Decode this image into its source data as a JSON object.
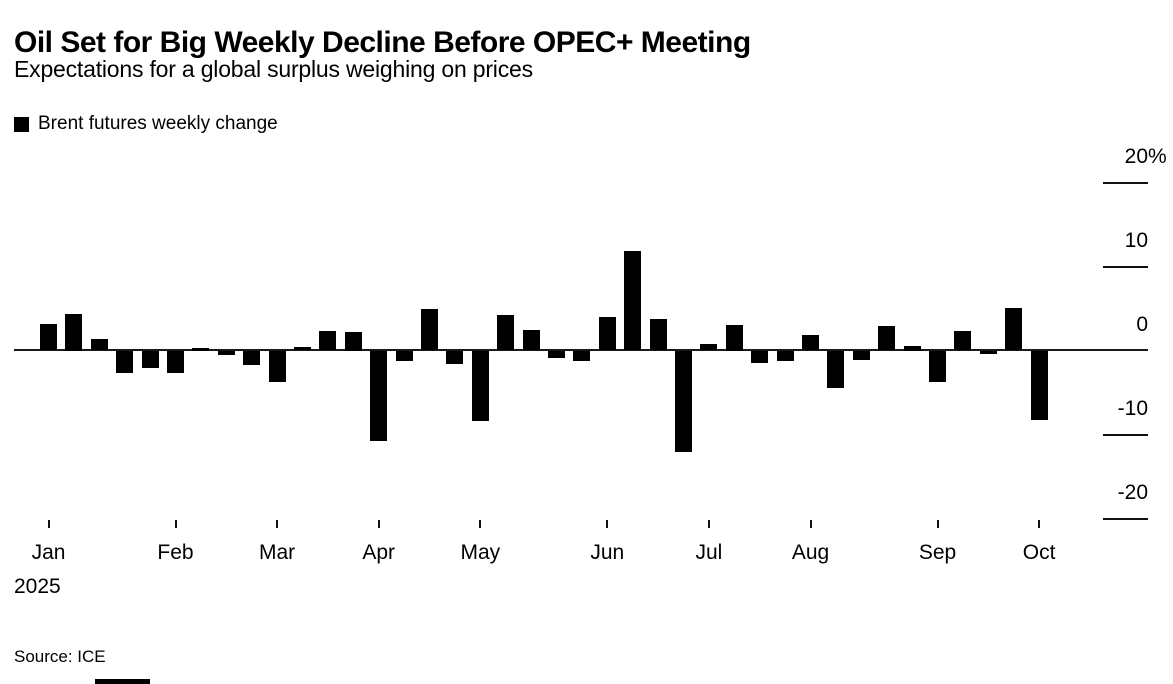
{
  "title": "Oil Set for Big Weekly Decline Before OPEC+ Meeting",
  "subtitle": "Expectations for a global surplus weighing on prices",
  "legend": {
    "label": "Brent futures weekly change",
    "marker_color": "#000000"
  },
  "source": "Source: ICE",
  "year_label": "2025",
  "colors": {
    "bar": "#000000",
    "axis": "#1a1a1a",
    "text": "#000000",
    "background": "#ffffff"
  },
  "chart_data": {
    "type": "bar",
    "title": "Oil Set for Big Weekly Decline Before OPEC+ Meeting",
    "subtitle": "Expectations for a global surplus weighing on prices",
    "ylabel": "",
    "xlabel": "",
    "unit": "%",
    "grid": false,
    "legend_position": "top-left",
    "series": [
      {
        "name": "Brent futures weekly change",
        "values": [
          3.2,
          4.4,
          1.4,
          -2.7,
          -2.1,
          -2.7,
          0.3,
          -0.5,
          -1.7,
          -3.8,
          0.4,
          2.3,
          2.2,
          -10.8,
          -1.3,
          4.9,
          -1.6,
          -8.4,
          4.2,
          2.4,
          -0.9,
          -1.3,
          4.0,
          11.8,
          3.8,
          -12.1,
          0.8,
          3.1,
          -1.5,
          -1.3,
          1.8,
          -4.4,
          -1.1,
          2.9,
          0.6,
          -3.7,
          2.3,
          -0.4,
          5.1,
          -8.3
        ]
      }
    ],
    "x_axis": {
      "description": "40 weekly bars, January through early October 2025",
      "year": "2025",
      "month_ticks": [
        {
          "label": "Jan",
          "week": 1
        },
        {
          "label": "Feb",
          "week": 6
        },
        {
          "label": "Mar",
          "week": 10
        },
        {
          "label": "Apr",
          "week": 14
        },
        {
          "label": "May",
          "week": 18
        },
        {
          "label": "Jun",
          "week": 23
        },
        {
          "label": "Jul",
          "week": 27
        },
        {
          "label": "Aug",
          "week": 31
        },
        {
          "label": "Sep",
          "week": 36
        },
        {
          "label": "Oct",
          "week": 40
        }
      ]
    },
    "y_axis": {
      "side": "right",
      "ticks": [
        {
          "num": "20",
          "suffix": "%",
          "value": 20
        },
        {
          "num": "10",
          "suffix": "",
          "value": 10
        },
        {
          "num": "0",
          "suffix": "",
          "value": 0
        },
        {
          "num": "-10",
          "suffix": "",
          "value": -10
        },
        {
          "num": "-20",
          "suffix": "",
          "value": -20
        }
      ],
      "range_shown": [
        -20,
        20
      ]
    }
  }
}
